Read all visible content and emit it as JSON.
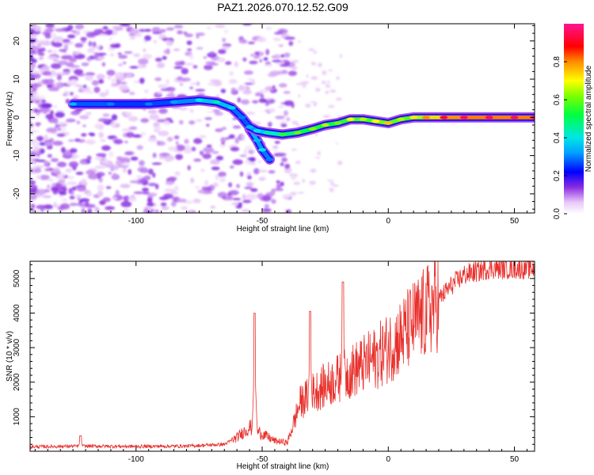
{
  "title": "PAZ1.2026.070.12.52.G09",
  "chart_data": [
    {
      "type": "heatmap",
      "xlabel": "Height of straight line (km)",
      "ylabel": "Frequency (Hz)",
      "xlim": [
        -142,
        58
      ],
      "ylim": [
        -25,
        24.5
      ],
      "xticks": [
        -100,
        -50,
        0,
        50
      ],
      "yticks": [
        -20,
        -10,
        0,
        10,
        20
      ],
      "colorbar": {
        "label": "Normalized spectral amplitude",
        "range": [
          0,
          1
        ],
        "ticks": [
          0.0,
          0.2,
          0.4,
          0.6,
          0.8
        ],
        "tick_labels": [
          "0.0",
          "0.2",
          "0.4",
          "0.6",
          "0.8"
        ]
      },
      "ridge": [
        {
          "x": -125,
          "y": 3.5,
          "v": 0.35
        },
        {
          "x": -110,
          "y": 3.5,
          "v": 0.3
        },
        {
          "x": -95,
          "y": 3.5,
          "v": 0.3
        },
        {
          "x": -85,
          "y": 4.0,
          "v": 0.32
        },
        {
          "x": -75,
          "y": 4.5,
          "v": 0.4
        },
        {
          "x": -68,
          "y": 4.0,
          "v": 0.45
        },
        {
          "x": -62,
          "y": 2.5,
          "v": 0.38
        },
        {
          "x": -58,
          "y": 0.0,
          "v": 0.3
        },
        {
          "x": -55,
          "y": -2.5,
          "v": 0.35
        },
        {
          "x": -52,
          "y": -3.5,
          "v": 0.4
        },
        {
          "x": -48,
          "y": -4.0,
          "v": 0.45
        },
        {
          "x": -42,
          "y": -4.5,
          "v": 0.55
        },
        {
          "x": -36,
          "y": -4.0,
          "v": 0.6
        },
        {
          "x": -30,
          "y": -3.0,
          "v": 0.62
        },
        {
          "x": -25,
          "y": -2.0,
          "v": 0.65
        },
        {
          "x": -20,
          "y": -1.5,
          "v": 0.6
        },
        {
          "x": -15,
          "y": -0.5,
          "v": 0.7
        },
        {
          "x": -10,
          "y": -0.5,
          "v": 0.65
        },
        {
          "x": -5,
          "y": -1.0,
          "v": 0.7
        },
        {
          "x": 0,
          "y": -1.5,
          "v": 0.75
        },
        {
          "x": 5,
          "y": -0.5,
          "v": 0.65
        },
        {
          "x": 10,
          "y": 0.0,
          "v": 0.72
        },
        {
          "x": 15,
          "y": 0.0,
          "v": 0.8
        },
        {
          "x": 22,
          "y": 0.0,
          "v": 0.92
        },
        {
          "x": 30,
          "y": 0.0,
          "v": 0.95
        },
        {
          "x": 40,
          "y": 0.0,
          "v": 0.95
        },
        {
          "x": 50,
          "y": 0.0,
          "v": 0.95
        },
        {
          "x": 58,
          "y": 0.0,
          "v": 0.95
        }
      ],
      "branch": [
        {
          "x": -55,
          "y": -3.0,
          "v": 0.45
        },
        {
          "x": -52,
          "y": -6.0,
          "v": 0.35
        },
        {
          "x": -50,
          "y": -8.5,
          "v": 0.4
        },
        {
          "x": -47,
          "y": -11.0,
          "v": 0.3
        }
      ]
    },
    {
      "type": "line",
      "xlabel": "Height of straight line (km)",
      "ylabel": "SNR (10 * v/v)",
      "xlim": [
        -142,
        58
      ],
      "ylim": [
        0,
        5500
      ],
      "xticks": [
        -100,
        -50,
        0,
        50
      ],
      "yticks": [
        1000,
        2000,
        3000,
        4000,
        5000
      ],
      "color": "#e8302c",
      "envelope": [
        {
          "x": -142,
          "y": 130
        },
        {
          "x": -120,
          "y": 150
        },
        {
          "x": -100,
          "y": 140
        },
        {
          "x": -80,
          "y": 150
        },
        {
          "x": -65,
          "y": 200
        },
        {
          "x": -60,
          "y": 400
        },
        {
          "x": -55,
          "y": 700
        },
        {
          "x": -50,
          "y": 500
        },
        {
          "x": -45,
          "y": 300
        },
        {
          "x": -40,
          "y": 250
        },
        {
          "x": -38,
          "y": 700
        },
        {
          "x": -35,
          "y": 1400
        },
        {
          "x": -30,
          "y": 1700
        },
        {
          "x": -25,
          "y": 1900
        },
        {
          "x": -20,
          "y": 2100
        },
        {
          "x": -15,
          "y": 2300
        },
        {
          "x": -10,
          "y": 2500
        },
        {
          "x": -5,
          "y": 2700
        },
        {
          "x": 0,
          "y": 3000
        },
        {
          "x": 5,
          "y": 3300
        },
        {
          "x": 10,
          "y": 3700
        },
        {
          "x": 15,
          "y": 4000
        },
        {
          "x": 20,
          "y": 4400
        },
        {
          "x": 25,
          "y": 4800
        },
        {
          "x": 30,
          "y": 5100
        },
        {
          "x": 40,
          "y": 5300
        },
        {
          "x": 50,
          "y": 5300
        },
        {
          "x": 58,
          "y": 5300
        }
      ],
      "spikes": [
        {
          "x": -122,
          "y": 450
        },
        {
          "x": -53,
          "y": 4000
        },
        {
          "x": -31,
          "y": 4050
        },
        {
          "x": -18,
          "y": 4900
        }
      ]
    }
  ]
}
